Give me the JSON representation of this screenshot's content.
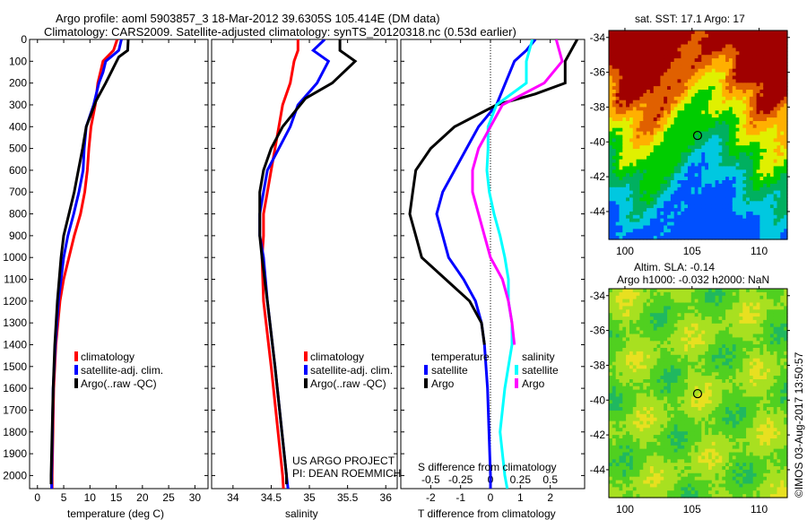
{
  "title_line1": "Argo profile: aoml 5903857_3 18-Mar-2012 39.6305S 105.414E (DM data)",
  "title_line2": "Climatology: CARS2009. Satellite-adjusted climatology: synTS_20120318.nc (0.53d earlier)",
  "colors": {
    "climatology": "#ff0000",
    "satellite": "#0000ff",
    "argo": "#000000",
    "sal_satellite": "#00ffff",
    "sal_argo": "#ff00ff"
  },
  "chart_data": [
    {
      "type": "line",
      "name": "temperature",
      "xlabel": "temperature (deg C)",
      "ylabel": "depth",
      "xlim": [
        -1.5,
        32.5
      ],
      "ylim": [
        2060,
        0
      ],
      "xticks": [
        0,
        5,
        10,
        15,
        20,
        25,
        30
      ],
      "yticks": [
        0,
        100,
        200,
        300,
        400,
        500,
        600,
        700,
        800,
        900,
        1000,
        1100,
        1200,
        1300,
        1400,
        1500,
        1600,
        1700,
        1800,
        1900,
        2000
      ],
      "legend": [
        "climatology",
        "satellite-adj. clim.",
        "Argo(..raw -QC)"
      ],
      "series": [
        {
          "name": "climatology",
          "color": "#ff0000",
          "depth": [
            0,
            50,
            100,
            200,
            300,
            400,
            500,
            600,
            700,
            800,
            900,
            1000,
            1100,
            1200,
            1300,
            1400,
            1600,
            2000,
            2060
          ],
          "values": [
            15.2,
            14.5,
            12.5,
            11.5,
            11,
            10.2,
            9.8,
            9.5,
            9,
            8.2,
            7,
            6,
            5,
            4.3,
            3.9,
            3.5,
            3.1,
            2.8,
            2.8
          ]
        },
        {
          "name": "satellite-adj. clim.",
          "color": "#0000ff",
          "depth": [
            0,
            50,
            100,
            150,
            200,
            300,
            400,
            500,
            600,
            700,
            800,
            900,
            1000,
            1200,
            1400,
            1600,
            2000,
            2060
          ],
          "values": [
            16,
            15.5,
            13,
            12.5,
            11.7,
            10.7,
            9.3,
            8.9,
            8.7,
            7.9,
            6.9,
            5.8,
            5,
            4,
            3.4,
            3,
            2.7,
            2.7
          ]
        },
        {
          "name": "Argo(..raw -QC)",
          "color": "#000000",
          "depth": [
            0,
            50,
            80,
            200,
            280,
            400,
            500,
            600,
            700,
            800,
            900,
            1000,
            1200,
            1400,
            1600,
            2000,
            2040
          ],
          "values": [
            17.3,
            17.2,
            15.5,
            13,
            11.2,
            9.3,
            8.6,
            7.8,
            7,
            6,
            5,
            4.5,
            3.8,
            3.3,
            3,
            2.6,
            2.6
          ]
        }
      ]
    },
    {
      "type": "line",
      "name": "salinity",
      "xlabel": "salinity",
      "xlim": [
        33.72,
        36.15
      ],
      "ylim": [
        2060,
        0
      ],
      "xticks": [
        34,
        34.5,
        35,
        35.5,
        36
      ],
      "legend": [
        "climatology",
        "satellite-adj. clim.",
        "Argo(..raw -QC)"
      ],
      "annotation": [
        "US ARGO PROJECT",
        "PI: DEAN ROEMMICH"
      ],
      "series": [
        {
          "name": "climatology",
          "color": "#ff0000",
          "depth": [
            0,
            50,
            100,
            200,
            300,
            400,
            500,
            600,
            700,
            800,
            900,
            1000,
            1200,
            1500,
            2000,
            2060
          ],
          "values": [
            34.85,
            34.85,
            34.8,
            34.75,
            34.65,
            34.6,
            34.55,
            34.5,
            34.45,
            34.4,
            34.4,
            34.38,
            34.4,
            34.5,
            34.65,
            34.66
          ]
        },
        {
          "name": "satellite-adj. clim.",
          "color": "#0000ff",
          "depth": [
            0,
            50,
            100,
            200,
            300,
            400,
            500,
            600,
            700,
            800,
            900,
            1000,
            1200,
            1500,
            2000,
            2060
          ],
          "values": [
            35.2,
            35.05,
            35.25,
            35.1,
            34.85,
            34.75,
            34.6,
            34.45,
            34.4,
            34.35,
            34.35,
            34.4,
            34.45,
            34.55,
            34.7,
            34.72
          ]
        },
        {
          "name": "Argo(..raw -QC)",
          "color": "#000000",
          "depth": [
            0,
            50,
            100,
            200,
            270,
            400,
            500,
            600,
            700,
            800,
            900,
            1000,
            1200,
            1500,
            2000,
            2040
          ],
          "values": [
            35.4,
            35.4,
            35.6,
            35.3,
            34.95,
            34.65,
            34.5,
            34.4,
            34.35,
            34.35,
            34.35,
            34.38,
            34.45,
            34.55,
            34.7,
            34.7
          ]
        }
      ]
    },
    {
      "type": "line",
      "name": "difference",
      "xlabel": "T difference from climatology",
      "x2label": "S difference from climatology",
      "xlim": [
        -3,
        3.15
      ],
      "ylim": [
        2060,
        0
      ],
      "xticks": [
        -2,
        -1,
        0,
        1,
        2
      ],
      "x2ticks": [
        -0.5,
        -0.25,
        0,
        0.25,
        0.5
      ],
      "x2ticklabels": [
        "-0.5",
        "-0.25",
        "0",
        "0.25",
        "0.5"
      ],
      "legend_temperature": {
        "title": "temperature",
        "items": [
          "satellite",
          "Argo"
        ]
      },
      "legend_salinity": {
        "title": "salinity",
        "items": [
          "satellite",
          "Argo"
        ]
      },
      "series": [
        {
          "name": "T satellite",
          "color": "#0000ff",
          "axis": "T",
          "depth": [
            0,
            50,
            100,
            200,
            300,
            400,
            500,
            600,
            700,
            800,
            900,
            1000,
            1100,
            1200,
            1300,
            1400,
            1600,
            2000,
            2060
          ],
          "values": [
            1.5,
            1.2,
            0.8,
            0.5,
            0.2,
            -0.4,
            -0.8,
            -1.2,
            -1.6,
            -1.8,
            -1.6,
            -1.4,
            -0.9,
            -0.5,
            -0.3,
            -0.2,
            -0.1,
            0,
            0
          ]
        },
        {
          "name": "T Argo",
          "color": "#000000",
          "axis": "T",
          "depth": [
            0,
            100,
            200,
            250,
            300,
            400,
            500,
            600,
            700,
            800,
            900,
            1000,
            1100,
            1200,
            1300,
            1400
          ],
          "values": [
            2.9,
            2.5,
            2.5,
            1.5,
            0.2,
            -1.2,
            -2,
            -2.5,
            -2.6,
            -2.7,
            -2.5,
            -2.3,
            -1.5,
            -0.7,
            -0.3,
            -0.2
          ]
        },
        {
          "name": "S satellite",
          "color": "#00ffff",
          "axis": "S",
          "depth": [
            0,
            100,
            200,
            300,
            400,
            500,
            600,
            700,
            800,
            900,
            1000,
            1100,
            1200,
            1300,
            1400,
            1600,
            1800,
            2000,
            2060
          ],
          "values": [
            0.35,
            0.3,
            0.3,
            0.05,
            -0.02,
            -0.02,
            -0.03,
            -0.01,
            0.03,
            0.08,
            0.12,
            0.15,
            0.15,
            0.18,
            0.18,
            0.12,
            0.08,
            0.12,
            0.14
          ]
        },
        {
          "name": "S Argo",
          "color": "#ff00ff",
          "axis": "S",
          "depth": [
            0,
            100,
            200,
            300,
            400,
            500,
            600,
            700,
            800,
            900,
            1000,
            1100,
            1200,
            1300,
            1400
          ],
          "values": [
            0.55,
            0.6,
            0.45,
            0.1,
            0,
            -0.1,
            -0.15,
            -0.15,
            -0.1,
            -0.05,
            0,
            0.1,
            0.15,
            0.18,
            0.2
          ]
        }
      ]
    },
    {
      "type": "heatmap",
      "name": "sst-map",
      "title": "sat. SST: 17.1 Argo: 17",
      "xlim": [
        98.8,
        112.1
      ],
      "ylim": [
        -45.6,
        -33.6
      ],
      "xticks": [
        100,
        105,
        110
      ],
      "yticks": [
        -34,
        -36,
        -38,
        -40,
        -42,
        -44
      ],
      "marker": {
        "lon": 105.414,
        "lat": -39.63
      }
    },
    {
      "type": "heatmap",
      "name": "sla-map",
      "title": [
        "Altim. SLA: -0.14",
        "Argo h1000: -0.032 h2000: NaN"
      ],
      "xlim": [
        98.8,
        112.1
      ],
      "ylim": [
        -45.6,
        -33.6
      ],
      "xticks": [
        100,
        105,
        110
      ],
      "yticks": [
        -34,
        -36,
        -38,
        -40,
        -42,
        -44
      ],
      "marker": {
        "lon": 105.414,
        "lat": -39.63
      }
    }
  ],
  "credit": "©IMOS 03-Aug-2017 13:50:57"
}
